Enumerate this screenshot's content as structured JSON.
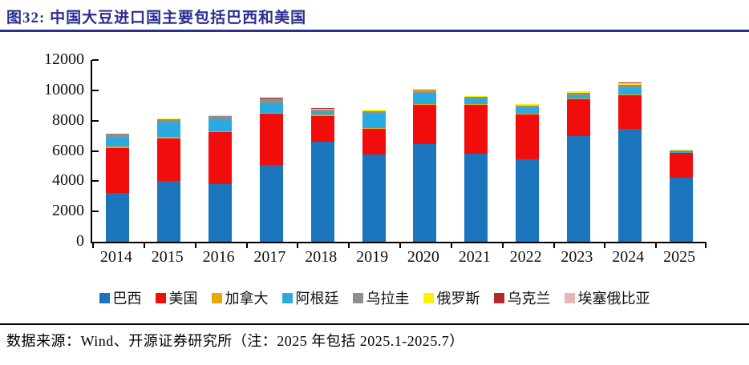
{
  "header": {
    "title": "图32:  中国大豆进口国主要包括巴西和美国"
  },
  "colors": {
    "title": "#2A2E8F",
    "title_rule": "#2A2E8F",
    "axis": "#000000",
    "footer_rule": "#000000"
  },
  "chart_data": {
    "type": "bar",
    "stacked": true,
    "title": "图32: 中国大豆进口国主要包括巴西和美国",
    "xlabel": "",
    "ylabel": "",
    "ylim": [
      0,
      12000
    ],
    "y_ticks": [
      0,
      2000,
      4000,
      6000,
      8000,
      10000,
      12000
    ],
    "grid": false,
    "legend_position": "bottom",
    "categories": [
      "2014",
      "2015",
      "2016",
      "2017",
      "2018",
      "2019",
      "2020",
      "2021",
      "2022",
      "2023",
      "2024",
      "2025"
    ],
    "series": [
      {
        "name": "巴西",
        "color": "#1B75BC",
        "values": [
          3200,
          4000,
          3820,
          5090,
          6600,
          5740,
          6430,
          5820,
          5440,
          7000,
          7460,
          4230
        ]
      },
      {
        "name": "美国",
        "color": "#F20D0D",
        "values": [
          2990,
          2840,
          3420,
          3350,
          1700,
          1690,
          2590,
          3230,
          2960,
          2420,
          2210,
          1620
        ]
      },
      {
        "name": "加拿大",
        "color": "#EBA800",
        "values": [
          90,
          80,
          60,
          50,
          90,
          90,
          60,
          50,
          50,
          50,
          60,
          30
        ]
      },
      {
        "name": "阿根廷",
        "color": "#29ABE2",
        "values": [
          600,
          940,
          800,
          660,
          200,
          950,
          750,
          370,
          360,
          200,
          410,
          100
        ]
      },
      {
        "name": "乌拉圭",
        "color": "#8E8E8E",
        "values": [
          240,
          230,
          210,
          290,
          130,
          170,
          120,
          100,
          200,
          180,
          240,
          60
        ]
      },
      {
        "name": "俄罗斯",
        "color": "#FFF200",
        "values": [
          10,
          50,
          50,
          50,
          80,
          70,
          70,
          50,
          70,
          90,
          110,
          40
        ]
      },
      {
        "name": "乌克兰",
        "color": "#B4282E",
        "values": [
          0,
          10,
          10,
          20,
          30,
          20,
          10,
          10,
          20,
          10,
          10,
          10
        ]
      },
      {
        "name": "埃塞俄比亚",
        "color": "#E5B7B7",
        "values": [
          10,
          10,
          10,
          10,
          10,
          10,
          10,
          10,
          10,
          10,
          10,
          5
        ]
      }
    ]
  },
  "footer": {
    "text": "数据来源：Wind、开源证券研究所（注：2025 年包括 2025.1-2025.7）"
  }
}
